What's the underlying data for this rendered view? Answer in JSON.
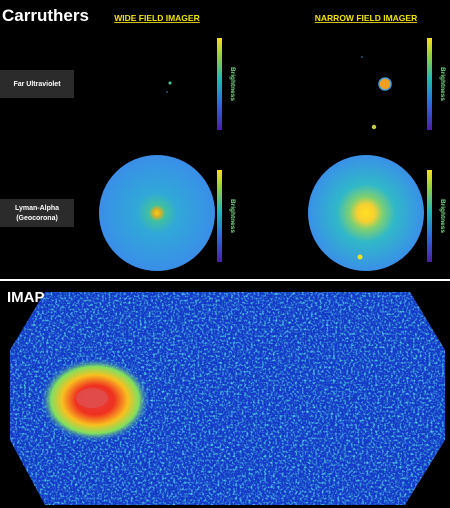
{
  "carruthers": {
    "title": "Carruthers",
    "columns": [
      "WIDE FIELD IMAGER",
      "NARROW FIELD IMAGER"
    ],
    "rows": [
      [
        "Far Ultraviolet"
      ],
      [
        "Lyman-Alpha",
        "(Geocorona)"
      ]
    ],
    "colorbar_label": "Brightness"
  },
  "imap": {
    "title": "IMAP"
  }
}
